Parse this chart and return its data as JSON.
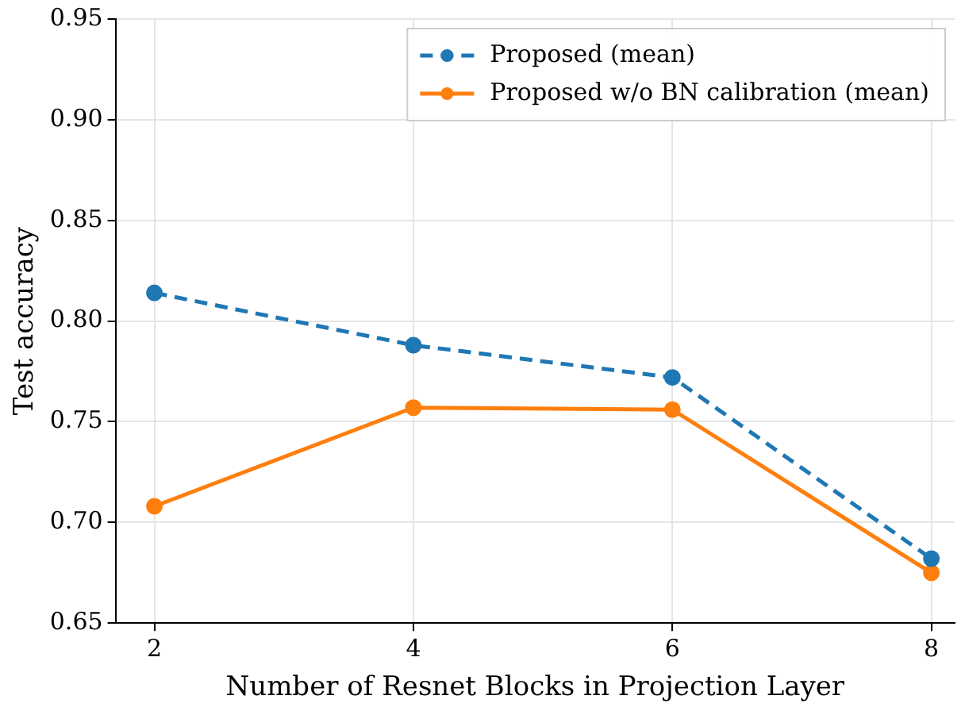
{
  "chart_data": {
    "type": "line",
    "xlabel": "Number of Resnet Blocks in Projection Layer",
    "ylabel": "Test accuracy",
    "x": [
      2,
      4,
      6,
      8
    ],
    "series": [
      {
        "name": "Proposed (mean)",
        "color": "#1f77b4",
        "values": [
          0.814,
          0.788,
          0.772,
          0.682
        ],
        "line_style": "dashed"
      },
      {
        "name": "Proposed w/o BN calibration (mean)",
        "color": "#ff7f0e",
        "values": [
          0.708,
          0.757,
          0.756,
          0.675
        ],
        "line_style": "solid"
      }
    ],
    "xlim": [
      1.7,
      8.18
    ],
    "xticks": [
      2,
      4,
      6,
      8
    ],
    "ylim": [
      0.65,
      0.95
    ],
    "yticks": [
      {
        "value": 0.65,
        "label": "0.65"
      },
      {
        "value": 0.7,
        "label": "0.70"
      },
      {
        "value": 0.75,
        "label": "0.75"
      },
      {
        "value": 0.8,
        "label": "0.80"
      },
      {
        "value": 0.85,
        "label": "0.85"
      },
      {
        "value": 0.9,
        "label": "0.90"
      },
      {
        "value": 0.95,
        "label": "0.95"
      }
    ],
    "grid": true,
    "legend": "top right",
    "marker": "circle"
  }
}
